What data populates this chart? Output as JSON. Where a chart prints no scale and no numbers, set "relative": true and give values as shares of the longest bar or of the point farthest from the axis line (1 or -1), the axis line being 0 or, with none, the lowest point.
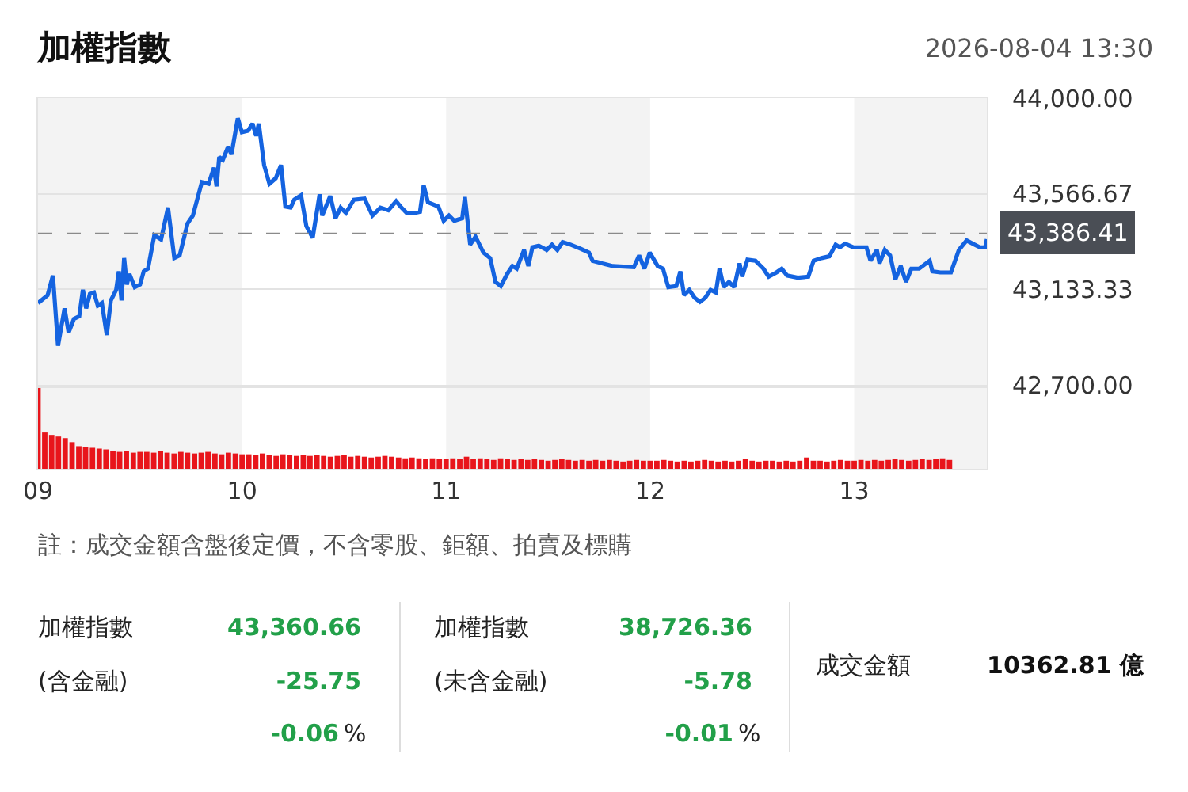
{
  "chart_data": [
    {
      "type": "line",
      "title": "加權指數",
      "subtitle": "2026-08-04 13:30",
      "color": "#1463e0",
      "x": [
        9.0,
        9.047,
        9.073,
        9.098,
        9.13,
        9.15,
        9.176,
        9.202,
        9.22,
        9.236,
        9.254,
        9.274,
        9.293,
        9.313,
        9.337,
        9.357,
        9.383,
        9.396,
        9.409,
        9.422,
        9.435,
        9.448,
        9.474,
        9.5,
        9.518,
        9.539,
        9.57,
        9.603,
        9.637,
        9.668,
        9.694,
        9.733,
        9.759,
        9.803,
        9.836,
        9.862,
        9.875,
        9.888,
        9.906,
        9.932,
        9.948,
        9.979,
        9.999,
        10.03,
        10.051,
        10.069,
        10.082,
        10.108,
        10.134,
        10.165,
        10.191,
        10.212,
        10.238,
        10.256,
        10.289,
        10.315,
        10.346,
        10.38,
        10.393,
        10.432,
        10.458,
        10.483,
        10.509,
        10.528,
        10.548,
        10.6,
        10.639,
        10.678,
        10.717,
        10.755,
        10.781,
        10.807,
        10.846,
        10.872,
        10.89,
        10.911,
        10.962,
        10.988,
        11.014,
        11.04,
        11.079,
        11.092,
        11.118,
        11.144,
        11.183,
        11.216,
        11.242,
        11.268,
        11.299,
        11.325,
        11.346,
        11.382,
        11.403,
        11.423,
        11.454,
        11.493,
        11.519,
        11.545,
        11.571,
        11.61,
        11.662,
        11.7,
        11.718,
        11.765,
        11.817,
        11.92,
        11.946,
        11.972,
        11.998,
        12.037,
        12.063,
        12.089,
        12.128,
        12.148,
        12.166,
        12.192,
        12.218,
        12.244,
        12.27,
        12.296,
        12.322,
        12.34,
        12.361,
        12.386,
        12.412,
        12.438,
        12.451,
        12.477,
        12.516,
        12.555,
        12.581,
        12.619,
        12.645,
        12.671,
        12.723,
        12.775,
        12.801,
        12.84,
        12.878,
        12.909,
        12.93,
        12.956,
        12.995,
        13.06,
        13.08,
        13.111,
        13.124,
        13.15,
        13.176,
        13.202,
        13.228,
        13.254,
        13.28,
        13.318,
        13.37,
        13.383,
        13.422,
        13.474,
        13.513,
        13.551,
        13.59,
        13.616,
        13.642,
        13.65
      ],
      "values": [
        43071,
        43107,
        43196,
        42878,
        43047,
        42938,
        42999,
        43011,
        43131,
        43047,
        43112,
        43119,
        43059,
        43071,
        42926,
        43083,
        43131,
        43215,
        43083,
        43275,
        43155,
        43203,
        43143,
        43155,
        43215,
        43227,
        43379,
        43360,
        43504,
        43275,
        43287,
        43432,
        43468,
        43620,
        43612,
        43685,
        43600,
        43733,
        43721,
        43781,
        43745,
        43909,
        43846,
        43853,
        43885,
        43829,
        43885,
        43697,
        43612,
        43637,
        43697,
        43509,
        43504,
        43540,
        43560,
        43420,
        43367,
        43564,
        43468,
        43557,
        43456,
        43504,
        43480,
        43509,
        43540,
        43545,
        43468,
        43504,
        43492,
        43533,
        43504,
        43480,
        43480,
        43485,
        43605,
        43528,
        43509,
        43444,
        43468,
        43444,
        43456,
        43552,
        43336,
        43372,
        43300,
        43275,
        43167,
        43148,
        43203,
        43239,
        43227,
        43312,
        43239,
        43324,
        43331,
        43312,
        43336,
        43312,
        43348,
        43336,
        43316,
        43300,
        43263,
        43251,
        43239,
        43234,
        43287,
        43227,
        43300,
        43239,
        43227,
        43143,
        43148,
        43215,
        43107,
        43131,
        43095,
        43076,
        43095,
        43131,
        43119,
        43227,
        43143,
        43167,
        43143,
        43251,
        43191,
        43268,
        43263,
        43227,
        43191,
        43210,
        43227,
        43196,
        43186,
        43191,
        43263,
        43275,
        43283,
        43336,
        43324,
        43340,
        43324,
        43324,
        43263,
        43312,
        43251,
        43312,
        43287,
        43179,
        43239,
        43167,
        43227,
        43227,
        43263,
        43215,
        43210,
        43210,
        43312,
        43355,
        43336,
        43324,
        43324,
        43361
      ],
      "xlim": [
        9,
        13.65
      ],
      "ylim": [
        42700,
        44000
      ],
      "yticks": [
        {
          "value": 42700,
          "label": "42,700.00"
        },
        {
          "value": 43133.33,
          "label": "43,133.33"
        },
        {
          "value": 43566.67,
          "label": "43,566.67"
        },
        {
          "value": 44000,
          "label": "44,000.00"
        }
      ],
      "grid": "y",
      "tick_labels": "y",
      "bands": [
        {
          "axis": "x",
          "from": 9,
          "to": 10,
          "color": "#f3f3f3"
        },
        {
          "axis": "x",
          "from": 11,
          "to": 12,
          "color": "#f3f3f3"
        },
        {
          "axis": "x",
          "from": 13,
          "to": 13.65,
          "color": "#f3f3f3"
        }
      ],
      "ref_lines": [
        {
          "axis": "y",
          "value": 43386.41,
          "label": "43,386.41",
          "color": "#8a8a8a",
          "line_style": "dashed"
        }
      ]
    },
    {
      "type": "bar",
      "relative": true,
      "color": "#e8151b",
      "tick_labels": "x",
      "xlim": [
        9,
        13.65
      ],
      "xticks": [
        {
          "value": 9,
          "label": "09"
        },
        10,
        11,
        12,
        13
      ],
      "x": [
        9,
        9.033,
        9.067,
        9.1,
        9.133,
        9.167,
        9.2,
        9.233,
        9.267,
        9.3,
        9.333,
        9.367,
        9.4,
        9.433,
        9.467,
        9.5,
        9.533,
        9.567,
        9.6,
        9.633,
        9.667,
        9.7,
        9.733,
        9.767,
        9.8,
        9.833,
        9.867,
        9.9,
        9.933,
        9.967,
        10,
        10.033,
        10.067,
        10.1,
        10.133,
        10.167,
        10.2,
        10.233,
        10.267,
        10.3,
        10.333,
        10.367,
        10.4,
        10.433,
        10.467,
        10.5,
        10.533,
        10.567,
        10.6,
        10.633,
        10.667,
        10.7,
        10.733,
        10.767,
        10.8,
        10.833,
        10.867,
        10.9,
        10.933,
        10.967,
        11,
        11.033,
        11.067,
        11.1,
        11.133,
        11.167,
        11.2,
        11.233,
        11.267,
        11.3,
        11.333,
        11.367,
        11.4,
        11.433,
        11.467,
        11.5,
        11.533,
        11.567,
        11.6,
        11.633,
        11.667,
        11.7,
        11.733,
        11.767,
        11.8,
        11.833,
        11.867,
        11.9,
        11.933,
        11.967,
        12,
        12.033,
        12.067,
        12.1,
        12.133,
        12.167,
        12.2,
        12.233,
        12.267,
        12.3,
        12.333,
        12.367,
        12.4,
        12.433,
        12.467,
        12.5,
        12.533,
        12.567,
        12.6,
        12.633,
        12.667,
        12.7,
        12.733,
        12.767,
        12.8,
        12.833,
        12.867,
        12.9,
        12.933,
        12.967,
        13,
        13.033,
        13.067,
        13.1,
        13.133,
        13.167,
        13.2,
        13.233,
        13.267,
        13.3,
        13.333,
        13.367,
        13.4,
        13.433,
        13.467
      ],
      "values": [
        1.0,
        0.45,
        0.42,
        0.4,
        0.38,
        0.33,
        0.28,
        0.27,
        0.26,
        0.25,
        0.24,
        0.22,
        0.21,
        0.22,
        0.2,
        0.21,
        0.21,
        0.2,
        0.22,
        0.2,
        0.19,
        0.21,
        0.2,
        0.19,
        0.2,
        0.21,
        0.19,
        0.18,
        0.2,
        0.19,
        0.18,
        0.18,
        0.17,
        0.19,
        0.17,
        0.16,
        0.18,
        0.17,
        0.16,
        0.17,
        0.16,
        0.17,
        0.16,
        0.15,
        0.16,
        0.17,
        0.15,
        0.16,
        0.15,
        0.14,
        0.15,
        0.16,
        0.15,
        0.14,
        0.13,
        0.14,
        0.13,
        0.12,
        0.13,
        0.12,
        0.12,
        0.13,
        0.12,
        0.15,
        0.12,
        0.13,
        0.12,
        0.11,
        0.13,
        0.12,
        0.11,
        0.12,
        0.11,
        0.12,
        0.11,
        0.1,
        0.11,
        0.12,
        0.11,
        0.1,
        0.11,
        0.1,
        0.11,
        0.1,
        0.11,
        0.1,
        0.09,
        0.1,
        0.11,
        0.1,
        0.1,
        0.1,
        0.11,
        0.1,
        0.09,
        0.1,
        0.09,
        0.1,
        0.11,
        0.1,
        0.09,
        0.1,
        0.09,
        0.1,
        0.12,
        0.1,
        0.09,
        0.1,
        0.1,
        0.09,
        0.1,
        0.09,
        0.1,
        0.14,
        0.1,
        0.1,
        0.09,
        0.1,
        0.11,
        0.1,
        0.1,
        0.11,
        0.1,
        0.11,
        0.1,
        0.11,
        0.12,
        0.11,
        0.1,
        0.11,
        0.12,
        0.11,
        0.12,
        0.13,
        0.11
      ],
      "bands": [
        {
          "axis": "x",
          "from": 9,
          "to": 10,
          "color": "#f3f3f3"
        },
        {
          "axis": "x",
          "from": 11,
          "to": 12,
          "color": "#f3f3f3"
        },
        {
          "axis": "x",
          "from": 13,
          "to": 13.65,
          "color": "#f3f3f3"
        }
      ]
    },
    {
      "type": "other",
      "annotations": [
        "註：成交金額含盤後定價，不含零股、鉅額、拍賣及標購",
        "加權指數",
        "43,360.66",
        "(含金融)",
        "-25.75",
        "-0.06",
        "%",
        "加權指數",
        "38,726.36",
        "(未含金融)",
        "-5.78",
        "-0.01",
        "%",
        "成交金額",
        "10362.81 億"
      ]
    }
  ]
}
